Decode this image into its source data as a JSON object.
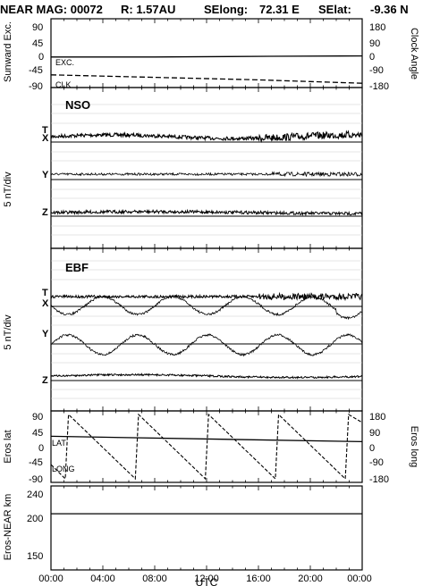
{
  "title": {
    "spacecraft": "NEAR MAG: 00072",
    "range": "R: 1.57AU",
    "selong_label": "SElong:",
    "selong_value": "72.31 E",
    "selat_label": "SElat:",
    "selat_value": "-9.36 N"
  },
  "x_axis": {
    "label": "UTC",
    "ticks": [
      "00:00",
      "04:00",
      "08:00",
      "12:00",
      "16:00",
      "20:00",
      "00:00"
    ]
  },
  "chart_data": [
    {
      "panel": "orientation",
      "type": "line",
      "ylabel_left": "Sunward Exc.",
      "ylabel_right": "Clock Angle",
      "yticks_left": [
        "90",
        "45",
        "0",
        "-45",
        "-90"
      ],
      "yticks_right": [
        "180",
        "90",
        "0",
        "-90",
        "-180"
      ],
      "ylim_left": [
        -90,
        90
      ],
      "ylim_right": [
        -180,
        180
      ],
      "series": [
        {
          "name": "EXC.",
          "style": "solid",
          "x": [
            0,
            8,
            17,
            24
          ],
          "values": [
            -2,
            -2,
            0,
            1
          ]
        },
        {
          "name": "CLK",
          "style": "dashed",
          "x": [
            0,
            8,
            16,
            20,
            24
          ],
          "values": [
            -110,
            -125,
            -140,
            -150,
            -160
          ]
        }
      ]
    },
    {
      "panel": "NSO",
      "type": "line",
      "label": "NSO",
      "ylabel": "5 nT/div",
      "channels": [
        "T",
        "X",
        "Y",
        "Z"
      ]
    },
    {
      "panel": "EBF",
      "type": "line",
      "label": "EBF",
      "ylabel": "5 nT/div",
      "channels": [
        "T",
        "X",
        "Y",
        "Z"
      ]
    },
    {
      "panel": "eros_geometry",
      "type": "line",
      "ylabel_left": "Eros lat",
      "ylabel_right": "Eros long",
      "yticks_left": [
        "90",
        "45",
        "0",
        "-45",
        "-90"
      ],
      "yticks_right": [
        "180",
        "90",
        "0",
        "-90",
        "-180"
      ],
      "ylim_left": [
        -90,
        90
      ],
      "ylim_right": [
        -180,
        180
      ],
      "series": [
        {
          "name": "LAT",
          "style": "solid",
          "x": [
            0,
            24
          ],
          "values": [
            29,
            14
          ]
        },
        {
          "name": "LONG",
          "style": "dashed",
          "x": [
            0,
            1.1,
            1.35,
            6.5,
            6.75,
            11.9,
            12.15,
            17.3,
            17.55,
            22.7,
            22.95,
            24
          ],
          "values": [
            -100,
            -180,
            180,
            -180,
            180,
            -180,
            180,
            -180,
            180,
            -180,
            180,
            135
          ]
        }
      ]
    },
    {
      "panel": "distance",
      "type": "line",
      "ylabel": "Eros-NEAR km",
      "yticks": [
        "240",
        "200",
        "150"
      ],
      "ylim": [
        110,
        255
      ],
      "series": [
        {
          "name": "Eros-NEAR km",
          "x": [
            0,
            24
          ],
          "values": [
            207,
            207
          ]
        }
      ]
    }
  ]
}
